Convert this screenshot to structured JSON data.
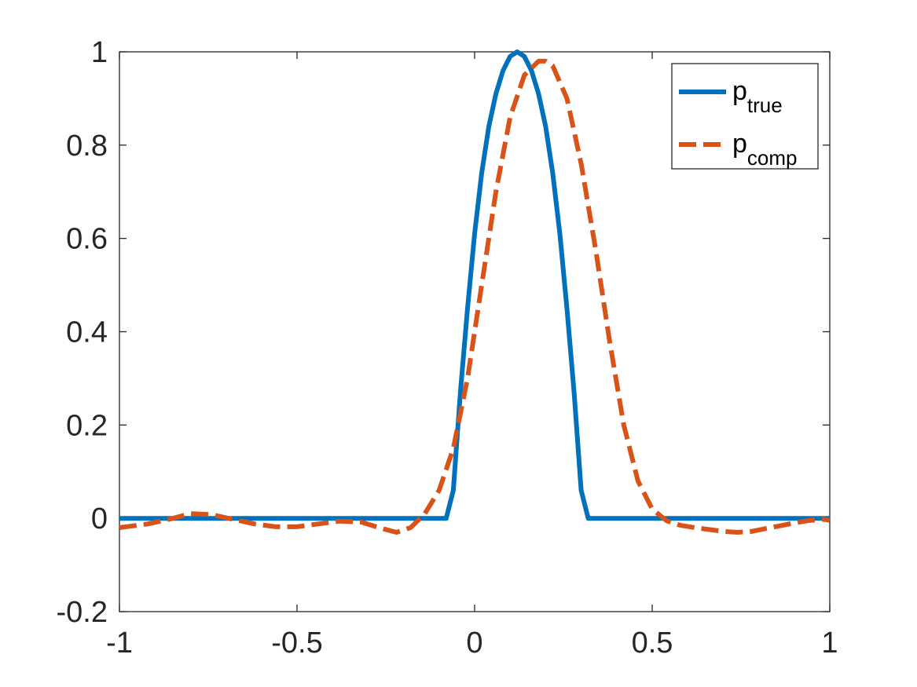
{
  "chart_data": {
    "type": "line",
    "title": "",
    "xlabel": "",
    "ylabel": "",
    "xlim": [
      -1,
      1
    ],
    "ylim": [
      -0.2,
      1
    ],
    "x_ticks": [
      -1,
      -0.5,
      0,
      0.5,
      1
    ],
    "x_tick_labels": [
      "-1",
      "-0.5",
      "0",
      "0.5",
      "1"
    ],
    "y_ticks": [
      -0.2,
      0,
      0.2,
      0.4,
      0.6,
      0.8,
      1
    ],
    "y_tick_labels": [
      "-0.2",
      "0",
      "0.2",
      "0.4",
      "0.6",
      "0.8",
      "1"
    ],
    "grid": false,
    "legend_position": "top-right",
    "legend": [
      {
        "base": "p",
        "sub": "true",
        "color": "#0072BD",
        "style": "solid"
      },
      {
        "base": "p",
        "sub": "comp",
        "color": "#D95319",
        "style": "dashed"
      }
    ],
    "series": [
      {
        "name": "p_true",
        "color": "#0072BD",
        "style": "solid",
        "x": [
          -1,
          -0.5,
          -0.08,
          -0.06,
          -0.04,
          -0.02,
          0,
          0.02,
          0.04,
          0.06,
          0.08,
          0.1,
          0.12,
          0.14,
          0.16,
          0.18,
          0.2,
          0.22,
          0.24,
          0.26,
          0.28,
          0.3,
          0.32,
          0.34,
          0.36,
          0.38,
          0.4,
          0.42,
          0.44,
          0.46,
          0.48,
          0.5,
          0.7,
          1
        ],
        "y": [
          0,
          0,
          0,
          0.06,
          0.27,
          0.45,
          0.61,
          0.74,
          0.84,
          0.91,
          0.96,
          0.99,
          1.0,
          0.99,
          0.96,
          0.91,
          0.84,
          0.74,
          0.61,
          0.45,
          0.27,
          0.06,
          0,
          0,
          0,
          0,
          0,
          0,
          0,
          0,
          0,
          0,
          0,
          0
        ]
      },
      {
        "name": "p_comp",
        "color": "#D95319",
        "style": "dashed",
        "x": [
          -1,
          -0.92,
          -0.86,
          -0.8,
          -0.74,
          -0.68,
          -0.62,
          -0.56,
          -0.5,
          -0.44,
          -0.38,
          -0.32,
          -0.26,
          -0.22,
          -0.18,
          -0.14,
          -0.1,
          -0.06,
          -0.02,
          0.02,
          0.06,
          0.1,
          0.14,
          0.18,
          0.2,
          0.22,
          0.26,
          0.3,
          0.34,
          0.38,
          0.42,
          0.46,
          0.5,
          0.54,
          0.58,
          0.62,
          0.66,
          0.7,
          0.74,
          0.78,
          0.82,
          0.86,
          0.9,
          0.94,
          0.98,
          1
        ],
        "y": [
          -0.02,
          -0.012,
          -0.002,
          0.01,
          0.008,
          -0.002,
          -0.012,
          -0.018,
          -0.018,
          -0.012,
          -0.006,
          -0.008,
          -0.022,
          -0.03,
          -0.02,
          0.01,
          0.06,
          0.15,
          0.3,
          0.5,
          0.7,
          0.86,
          0.95,
          0.98,
          0.98,
          0.97,
          0.9,
          0.76,
          0.58,
          0.38,
          0.2,
          0.08,
          0.02,
          -0.005,
          -0.015,
          -0.02,
          -0.024,
          -0.028,
          -0.03,
          -0.028,
          -0.022,
          -0.016,
          -0.01,
          -0.005,
          -0.002,
          -0.004
        ]
      }
    ]
  }
}
